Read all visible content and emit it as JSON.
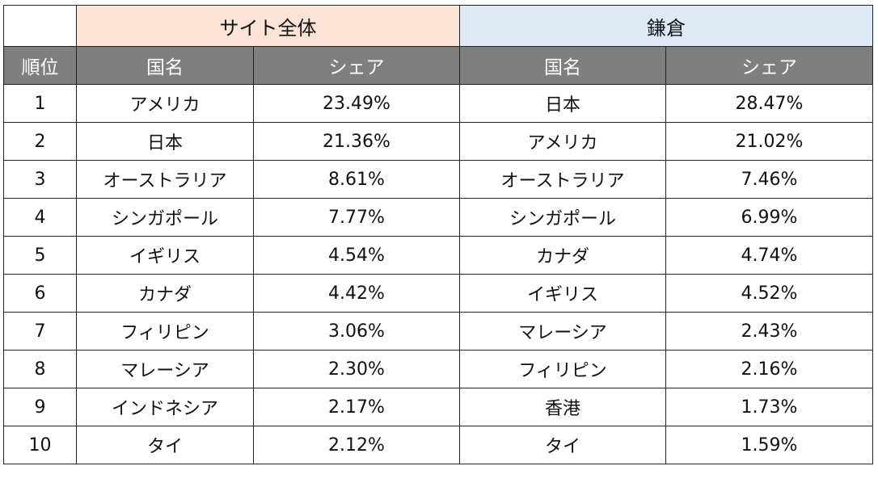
{
  "groups": {
    "site": {
      "label": "サイト全体",
      "color": "#fbe4d5"
    },
    "kamakura": {
      "label": "鎌倉",
      "color": "#deebf7"
    }
  },
  "columns": {
    "rank": "順位",
    "country": "国名",
    "share": "シェア"
  },
  "rows": [
    {
      "rank": "1",
      "site_country": "アメリカ",
      "site_share": "23.49%",
      "kamakura_country": "日本",
      "kamakura_share": "28.47%"
    },
    {
      "rank": "2",
      "site_country": "日本",
      "site_share": "21.36%",
      "kamakura_country": "アメリカ",
      "kamakura_share": "21.02%"
    },
    {
      "rank": "3",
      "site_country": "オーストラリア",
      "site_share": "8.61%",
      "kamakura_country": "オーストラリア",
      "kamakura_share": "7.46%"
    },
    {
      "rank": "4",
      "site_country": "シンガポール",
      "site_share": "7.77%",
      "kamakura_country": "シンガポール",
      "kamakura_share": "6.99%"
    },
    {
      "rank": "5",
      "site_country": "イギリス",
      "site_share": "4.54%",
      "kamakura_country": "カナダ",
      "kamakura_share": "4.74%"
    },
    {
      "rank": "6",
      "site_country": "カナダ",
      "site_share": "4.42%",
      "kamakura_country": "イギリス",
      "kamakura_share": "4.52%"
    },
    {
      "rank": "7",
      "site_country": "フィリピン",
      "site_share": "3.06%",
      "kamakura_country": "マレーシア",
      "kamakura_share": "2.43%"
    },
    {
      "rank": "8",
      "site_country": "マレーシア",
      "site_share": "2.30%",
      "kamakura_country": "フィリピン",
      "kamakura_share": "2.16%"
    },
    {
      "rank": "9",
      "site_country": "インドネシア",
      "site_share": "2.17%",
      "kamakura_country": "香港",
      "kamakura_share": "1.73%"
    },
    {
      "rank": "10",
      "site_country": "タイ",
      "site_share": "2.12%",
      "kamakura_country": "タイ",
      "kamakura_share": "1.59%"
    }
  ]
}
